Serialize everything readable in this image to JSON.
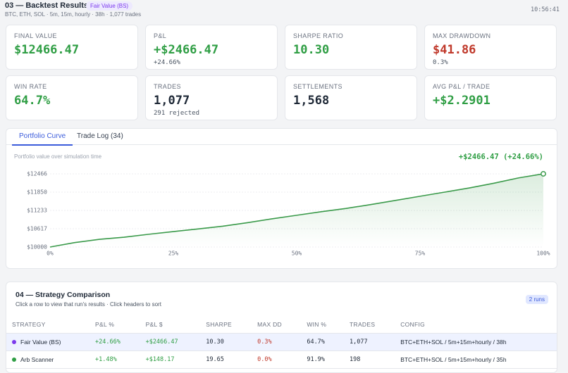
{
  "header": {
    "title": "03 — Backtest Results",
    "badge": "Fair Value (BS)",
    "subtitle": "BTC, ETH, SOL · 5m, 15m, hourly · 38h · 1,077 trades",
    "time": "10:56:41"
  },
  "cards": [
    {
      "label": "FINAL VALUE",
      "value": "$12466.47",
      "color": "#2f9e44"
    },
    {
      "label": "P&L",
      "value": "+$2466.47",
      "sub": "+24.66%",
      "color": "#2f9e44"
    },
    {
      "label": "SHARPE RATIO",
      "value": "10.30",
      "color": "#2f9e44"
    },
    {
      "label": "MAX DRAWDOWN",
      "value": "$41.86",
      "sub": "0.3%",
      "color": "#c0392b"
    },
    {
      "label": "WIN RATE",
      "value": "64.7%",
      "color": "#2f9e44"
    },
    {
      "label": "TRADES",
      "value": "1,077",
      "sub": "291 rejected",
      "color": "#1f2937"
    },
    {
      "label": "SETTLEMENTS",
      "value": "1,568",
      "color": "#1f2937"
    },
    {
      "label": "AVG P&L / TRADE",
      "value": "+$2.2901",
      "color": "#2f9e44"
    }
  ],
  "tabs": [
    "Portfolio Curve",
    "Trade Log (34)"
  ],
  "chart_data": {
    "type": "line",
    "subtitle": "Portfolio value over simulation time",
    "annotation": "+$2466.47 (+24.66%)",
    "color": "#3a9a4a",
    "x": [
      0,
      5,
      10,
      15,
      20,
      25,
      30,
      35,
      40,
      45,
      50,
      55,
      60,
      65,
      70,
      75,
      80,
      85,
      90,
      95,
      100
    ],
    "values": [
      10000,
      10150,
      10260,
      10330,
      10430,
      10520,
      10610,
      10700,
      10820,
      10950,
      11070,
      11190,
      11300,
      11430,
      11570,
      11710,
      11850,
      11990,
      12150,
      12330,
      12466
    ],
    "xlim": [
      0,
      100
    ],
    "ylim": [
      10000,
      12466
    ],
    "xticks": [
      {
        "value": 0,
        "label": "0%"
      },
      {
        "value": 25,
        "label": "25%"
      },
      {
        "value": 50,
        "label": "50%"
      },
      {
        "value": 75,
        "label": "75%"
      },
      {
        "value": 100,
        "label": "100%"
      }
    ],
    "yticks": [
      {
        "value": 10000,
        "label": "$10000"
      },
      {
        "value": 10617,
        "label": "$10617"
      },
      {
        "value": 11233,
        "label": "$11233"
      },
      {
        "value": 11850,
        "label": "$11850"
      },
      {
        "value": 12466,
        "label": "$12466"
      }
    ],
    "grid": true
  },
  "comparison": {
    "title": "04 — Strategy Comparison",
    "subtitle": "Click a row to view that run's results · Click headers to sort",
    "badge": "2 runs",
    "columns": [
      "STRATEGY",
      "P&L %",
      "P&L $",
      "SHARPE",
      "MAX DD",
      "WIN %",
      "TRADES",
      "CONFIG"
    ],
    "rows": [
      {
        "color": "#7c3aed",
        "cells": [
          "Fair Value (BS)",
          "+24.66%",
          "+$2466.47",
          "10.30",
          "0.3%",
          "64.7%",
          "1,077",
          "BTC+ETH+SOL / 5m+15m+hourly / 38h"
        ]
      },
      {
        "color": "#2f9e44",
        "cells": [
          "Arb Scanner",
          "+1.48%",
          "+$148.17",
          "19.65",
          "0.0%",
          "91.9%",
          "198",
          "BTC+ETH+SOL / 5m+15m+hourly / 35h"
        ]
      }
    ]
  }
}
